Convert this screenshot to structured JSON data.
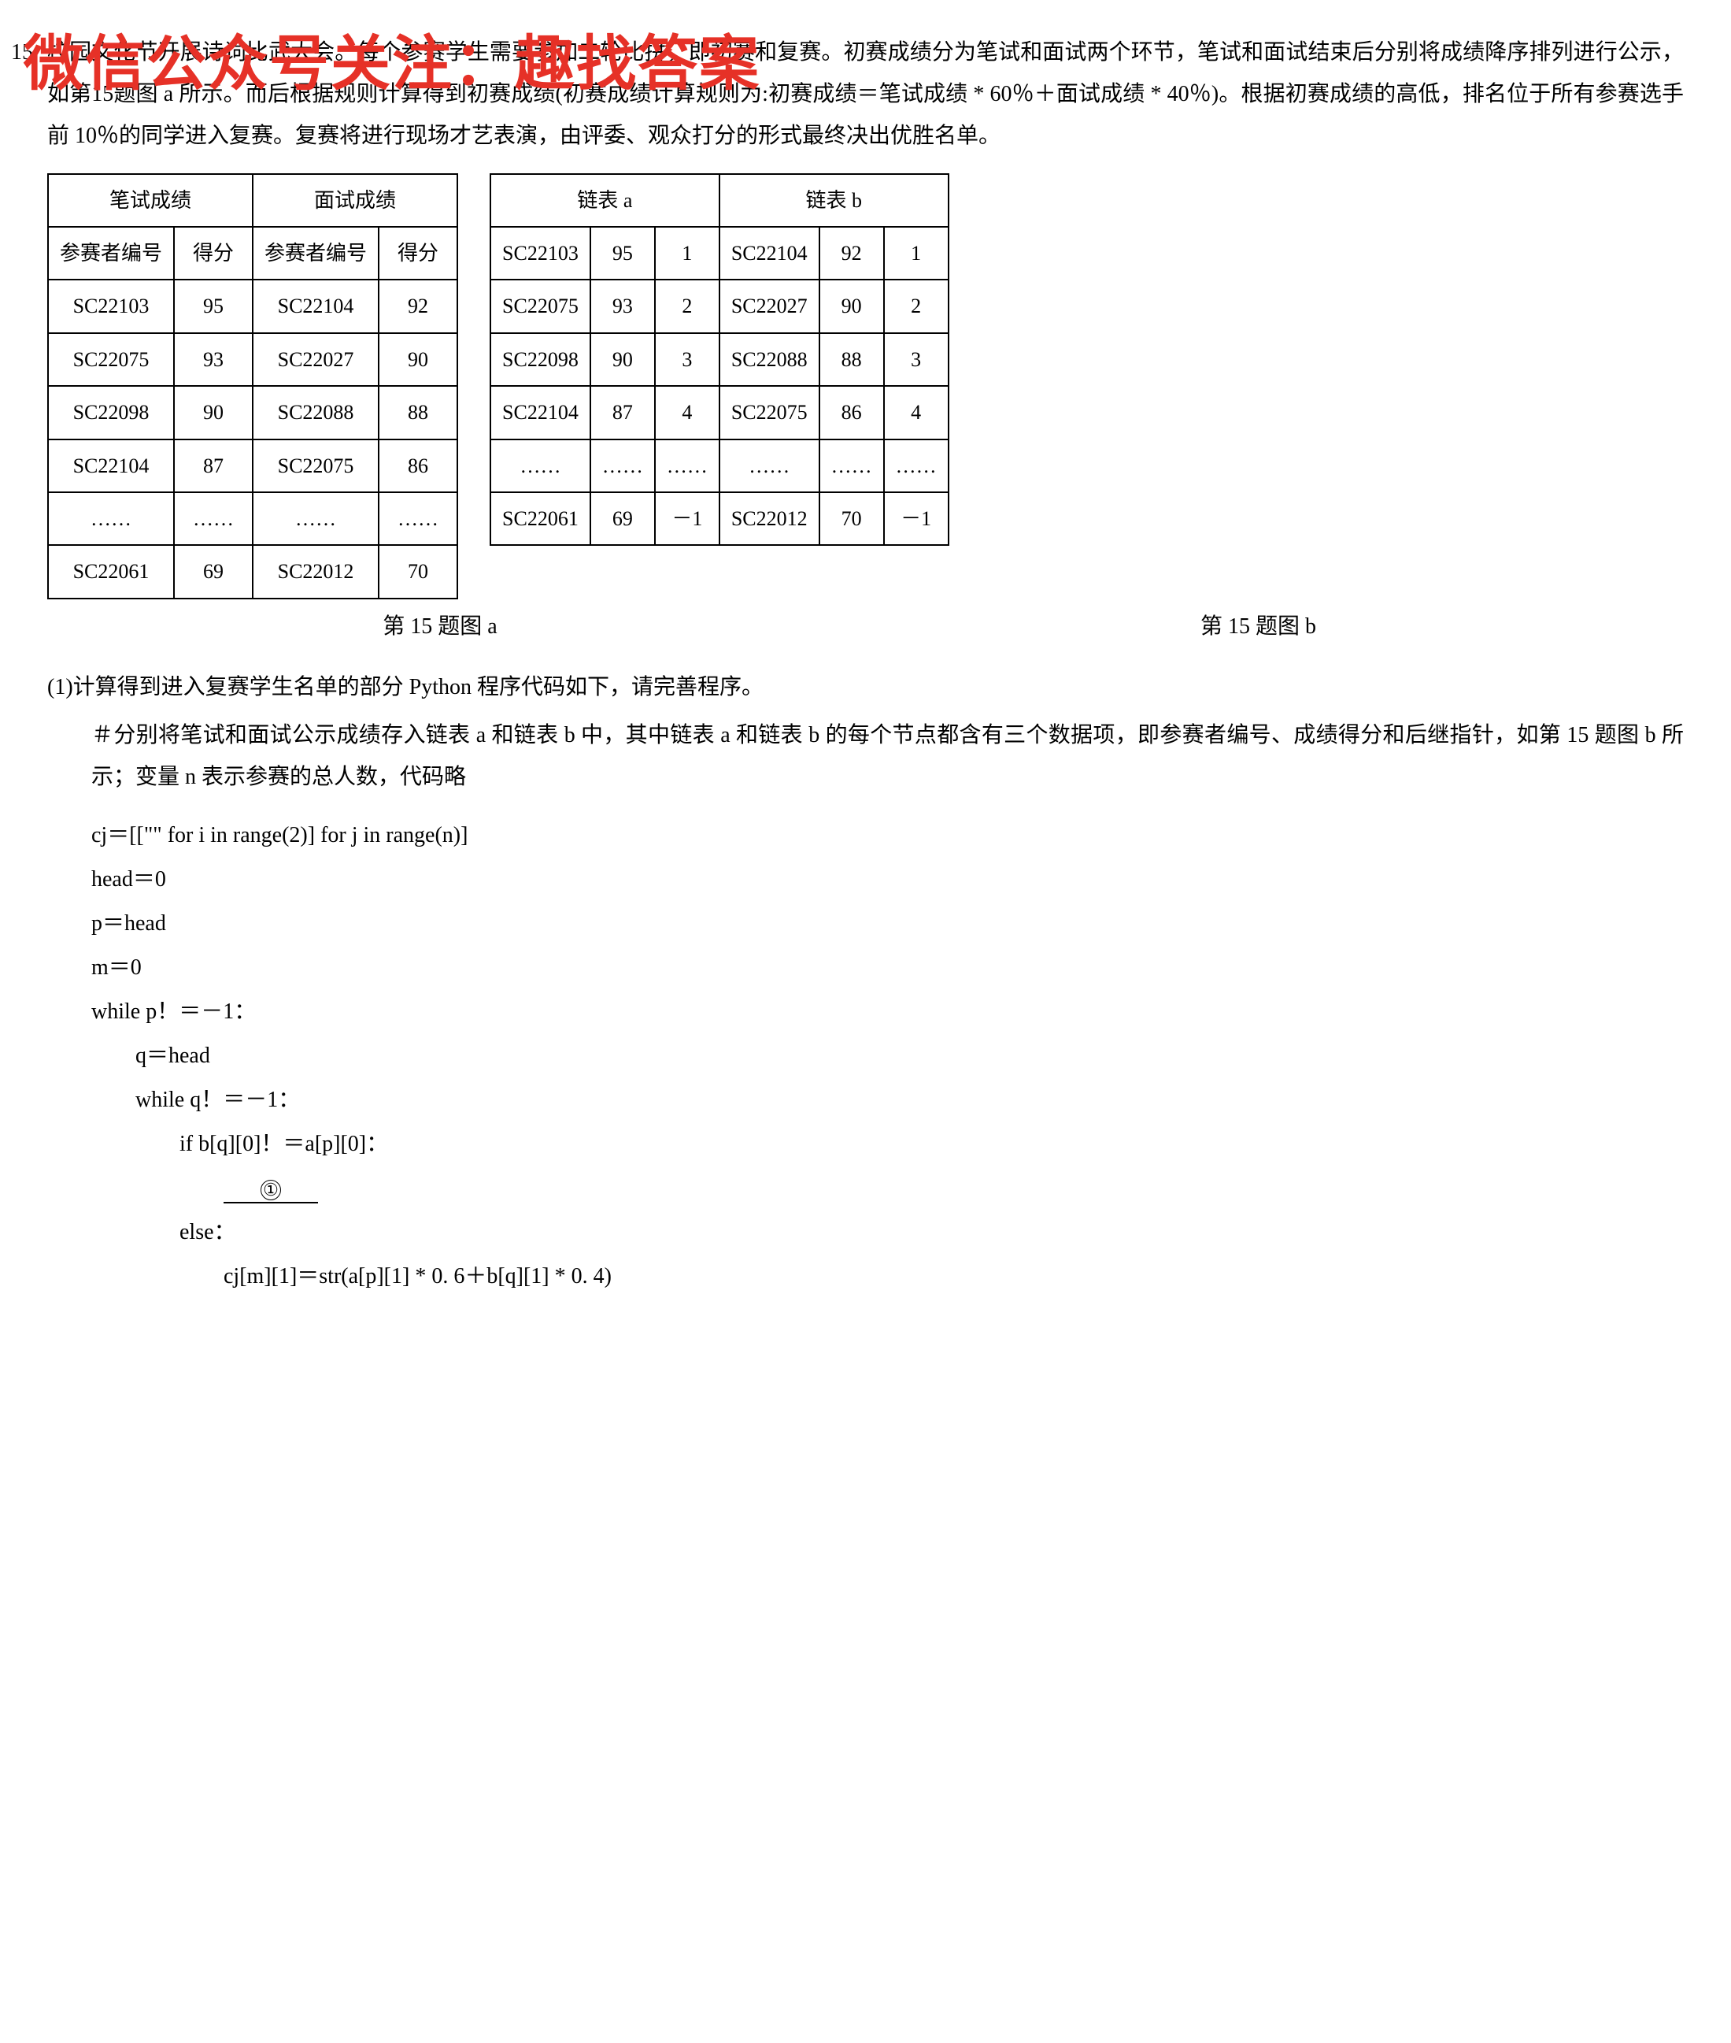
{
  "question_number": "15.",
  "watermark_text": "微信公众号关注：趣找答案",
  "body_paragraph": "校园文化节开展诗词比武大会。每个参赛学生需要参加二轮比拼，即初赛和复赛。初赛成绩分为笔试和面试两个环节，笔试和面试结束后分别将成绩降序排列进行公示，如第15题图 a 所示。而后根据规则计算得到初赛成绩(初赛成绩计算规则为:初赛成绩＝笔试成绩 * 60％＋面试成绩 * 40％)。根据初赛成绩的高低，排名位于所有参赛选手前 10％的同学进入复赛。复赛将进行现场才艺表演，由评委、观众打分的形式最终决出优胜名单。",
  "table_a": {
    "header1_col1": "笔试成绩",
    "header1_col2": "面试成绩",
    "header2": [
      "参赛者编号",
      "得分",
      "参赛者编号",
      "得分"
    ],
    "rows": [
      [
        "SC22103",
        "95",
        "SC22104",
        "92"
      ],
      [
        "SC22075",
        "93",
        "SC22027",
        "90"
      ],
      [
        "SC22098",
        "90",
        "SC22088",
        "88"
      ],
      [
        "SC22104",
        "87",
        "SC22075",
        "86"
      ],
      [
        "……",
        "……",
        "……",
        "……"
      ],
      [
        "SC22061",
        "69",
        "SC22012",
        "70"
      ]
    ],
    "caption": "第 15 题图 a"
  },
  "table_b": {
    "header1_col1": "链表 a",
    "header1_col2": "链表 b",
    "rows": [
      [
        "SC22103",
        "95",
        "1",
        "SC22104",
        "92",
        "1"
      ],
      [
        "SC22075",
        "93",
        "2",
        "SC22027",
        "90",
        "2"
      ],
      [
        "SC22098",
        "90",
        "3",
        "SC22088",
        "88",
        "3"
      ],
      [
        "SC22104",
        "87",
        "4",
        "SC22075",
        "86",
        "4"
      ],
      [
        "……",
        "……",
        "……",
        "……",
        "……",
        "……"
      ],
      [
        "SC22061",
        "69",
        "－1",
        "SC22012",
        "70",
        "－1"
      ]
    ],
    "caption": "第 15 题图 b"
  },
  "sub_q1": "(1)计算得到进入复赛学生名单的部分 Python 程序代码如下，请完善程序。",
  "comment": "＃分别将笔试和面试公示成绩存入链表 a 和链表 b 中，其中链表 a 和链表 b 的每个节点都含有三个数据项，即参赛者编号、成绩得分和后继指针，如第 15 题图 b 所示；变量 n 表示参赛的总人数，代码略",
  "code": {
    "l1": "cj＝[[\"\" for i in range(2)] for j in range(n)]",
    "l2": "head＝0",
    "l3": "p＝head",
    "l4": "m＝0",
    "l5": "while p！＝－1：",
    "l6": "q＝head",
    "l7": "while q！＝－1：",
    "l8": "if b[q][0]！＝a[p][0]：",
    "l9_blank": "①",
    "l10": "else：",
    "l11": "cj[m][1]＝str(a[p][1] * 0. 6＋b[q][1] * 0. 4)"
  }
}
